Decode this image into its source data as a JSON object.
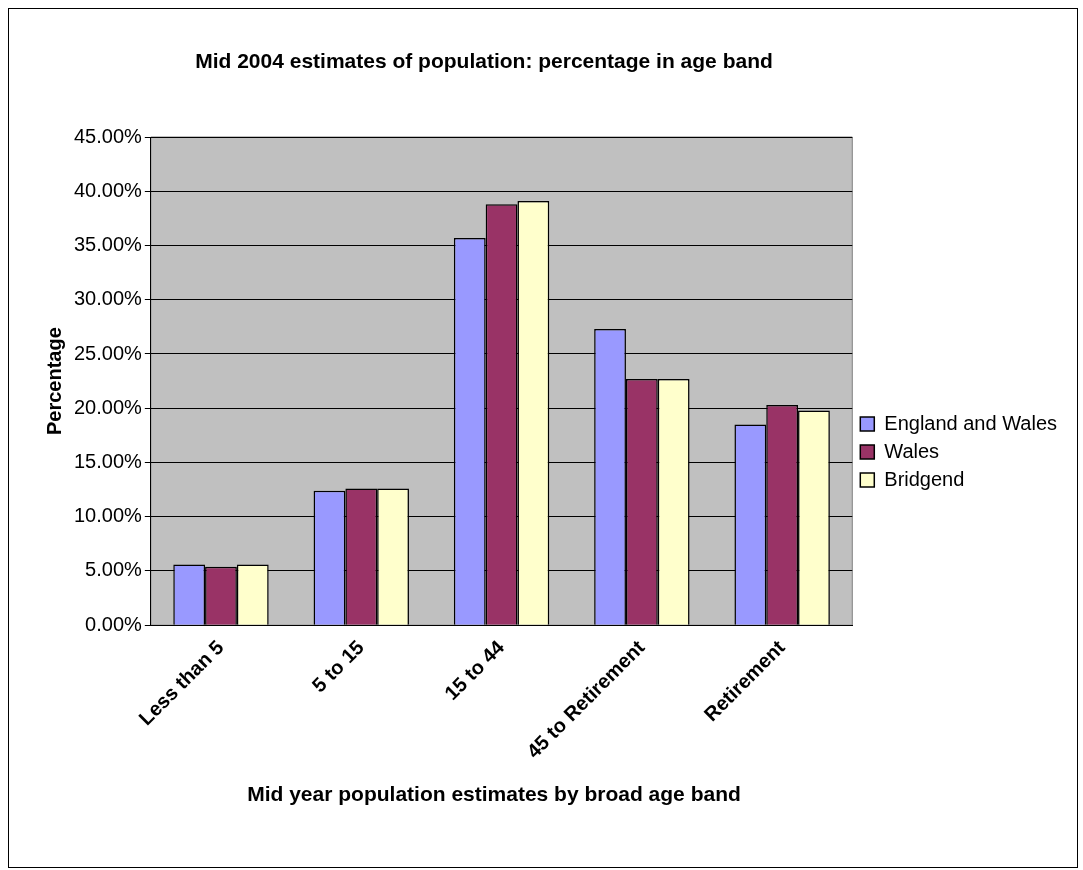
{
  "chart_data": {
    "type": "bar",
    "title": "Mid 2004 estimates of population: percentage in age band",
    "xlabel": "Mid year population estimates by broad age band",
    "ylabel": "Percentage",
    "categories": [
      "Less than 5",
      "5 to 15",
      "15 to 44",
      "45 to Retirement",
      "Retirement"
    ],
    "series": [
      {
        "name": "England and Wales",
        "color": "#9999ff",
        "values": [
          5.6,
          12.4,
          35.7,
          27.3,
          18.5
        ]
      },
      {
        "name": "Wales",
        "color": "#993366",
        "values": [
          5.4,
          12.6,
          38.8,
          22.7,
          20.3
        ]
      },
      {
        "name": "Bridgend",
        "color": "#ffffcc",
        "values": [
          5.6,
          12.6,
          39.1,
          22.7,
          19.8
        ]
      }
    ],
    "ylim": [
      0,
      45
    ],
    "yticks": [
      {
        "value": 0,
        "label": "0.00%"
      },
      {
        "value": 5,
        "label": "5.00%"
      },
      {
        "value": 10,
        "label": "10.00%"
      },
      {
        "value": 15,
        "label": "15.00%"
      },
      {
        "value": 20,
        "label": "20.00%"
      },
      {
        "value": 25,
        "label": "25.00%"
      },
      {
        "value": 30,
        "label": "30.00%"
      },
      {
        "value": 35,
        "label": "35.00%"
      },
      {
        "value": 40,
        "label": "40.00%"
      },
      {
        "value": 45,
        "label": "45.00%"
      }
    ],
    "grid": "y",
    "legend": "right"
  }
}
